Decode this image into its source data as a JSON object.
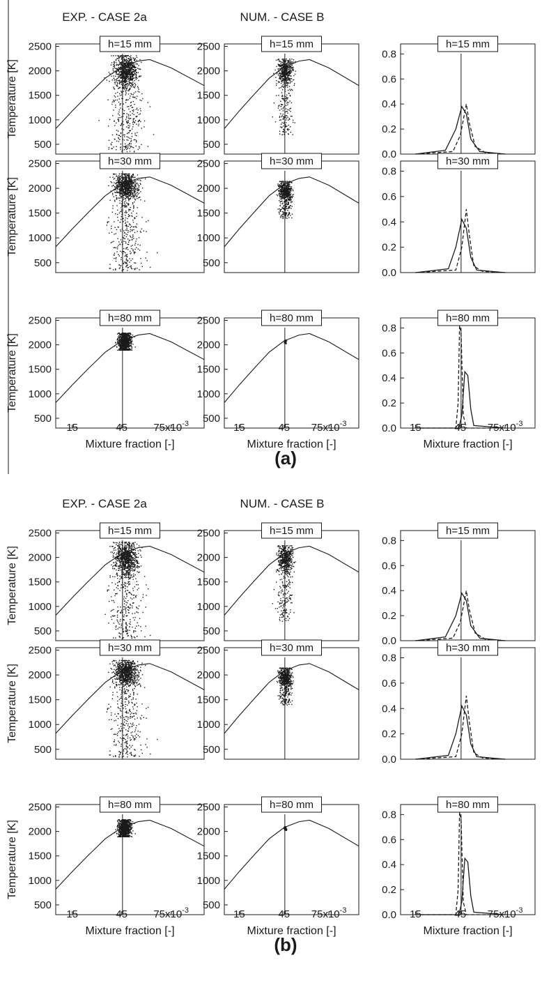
{
  "figure": {
    "parts": [
      {
        "letter": "(a)",
        "column_headers": [
          "EXP. - CASE 2a",
          "NUM. - CASE B",
          ""
        ],
        "xlabel": "Mixture fraction [-]",
        "ylabel": "Temperature [K]"
      },
      {
        "letter": "(b)",
        "column_headers": [
          "EXP. - CASE 2a",
          "NUM. - CASE B",
          ""
        ],
        "xlabel": "Mixture fraction [-]",
        "ylabel": "Temperature [K]"
      }
    ],
    "row_labels": [
      "h=15 mm",
      "h=30 mm",
      "h=80 mm"
    ],
    "x_ticks": [
      "15",
      "45",
      "75x10"
    ],
    "x_tick_exponent": "-3",
    "temp_ticks": [
      "2500",
      "2000",
      "1500",
      "1000",
      "500"
    ],
    "pdf_ticks": [
      "0.8",
      "0.6",
      "0.4",
      "0.2",
      "0.0"
    ]
  },
  "chart_data": {
    "type": "scatter",
    "description_units": "x in mixture fraction (x10^-3 shown on axis), y in K for scatter panels, PDF value for right column",
    "xlim": [
      0.005,
      0.095
    ],
    "temperature_ylim": [
      300,
      2550
    ],
    "pdf_ylim": [
      0,
      0.88
    ],
    "stoichiometric_mixture_fraction": 0.0455,
    "equilibrium_curve": {
      "name": "",
      "x": [
        0.005,
        0.015,
        0.025,
        0.035,
        0.045,
        0.055,
        0.062,
        0.075,
        0.095
      ],
      "y": [
        820,
        1180,
        1520,
        1850,
        2080,
        2200,
        2230,
        2060,
        1700
      ]
    },
    "rows": [
      {
        "label": "h=15 mm",
        "experimental_scatter": {
          "x_center": 0.0475,
          "x_spread": 0.0035,
          "y_min": 350,
          "y_max": 2320,
          "y_mode": 2000
        },
        "numerical_scatter": {
          "x_center": 0.0455,
          "x_spread": 0.0025,
          "y_min": 700,
          "y_max": 2250,
          "y_mode": 2000
        },
        "pdf_solid": {
          "x": [
            0.015,
            0.035,
            0.042,
            0.046,
            0.049,
            0.052,
            0.058,
            0.075
          ],
          "y": [
            0,
            0.03,
            0.2,
            0.38,
            0.32,
            0.12,
            0.02,
            0
          ]
        },
        "pdf_dashed": {
          "x": [
            0.015,
            0.04,
            0.045,
            0.049,
            0.051,
            0.055,
            0.062,
            0.075
          ],
          "y": [
            0,
            0.02,
            0.15,
            0.4,
            0.25,
            0.06,
            0.01,
            0
          ]
        }
      },
      {
        "label": "h=30 mm",
        "experimental_scatter": {
          "x_center": 0.0475,
          "x_spread": 0.0035,
          "y_min": 350,
          "y_max": 2300,
          "y_mode": 2050
        },
        "numerical_scatter": {
          "x_center": 0.0455,
          "x_spread": 0.002,
          "y_min": 1400,
          "y_max": 2150,
          "y_mode": 1950
        },
        "pdf_solid": {
          "x": [
            0.015,
            0.037,
            0.042,
            0.046,
            0.049,
            0.052,
            0.056,
            0.075
          ],
          "y": [
            0,
            0.03,
            0.2,
            0.42,
            0.35,
            0.12,
            0.02,
            0
          ]
        },
        "pdf_dashed": {
          "x": [
            0.015,
            0.042,
            0.046,
            0.049,
            0.051,
            0.054,
            0.06,
            0.075
          ],
          "y": [
            0,
            0.02,
            0.2,
            0.5,
            0.3,
            0.05,
            0.01,
            0
          ]
        }
      },
      {
        "label": "h=80 mm",
        "experimental_scatter": {
          "x_center": 0.0465,
          "x_spread": 0.0018,
          "y_min": 1900,
          "y_max": 2250,
          "y_mode": 2050
        },
        "numerical_scatter": {
          "x_center": 0.0455,
          "x_spread": 0.0004,
          "y_min": 2030,
          "y_max": 2110,
          "y_mode": 2070
        },
        "pdf_solid": {
          "x": [
            0.015,
            0.044,
            0.046,
            0.048,
            0.05,
            0.052,
            0.054,
            0.075
          ],
          "y": [
            0,
            0.0,
            0.1,
            0.45,
            0.42,
            0.15,
            0.02,
            0
          ]
        },
        "pdf_dashed": {
          "x": [
            0.015,
            0.042,
            0.0435,
            0.0445,
            0.0455,
            0.047,
            0.049,
            0.075
          ],
          "y": [
            0,
            0.0,
            0.2,
            0.82,
            0.75,
            0.1,
            0.0,
            0
          ]
        }
      }
    ]
  },
  "colors": {
    "ink": "#1a1a1a",
    "background": "#ffffff"
  }
}
